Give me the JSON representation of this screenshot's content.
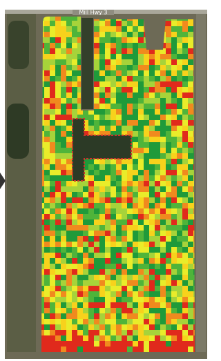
{
  "map": {
    "road_label": "Mill Hwy 3"
  }
}
